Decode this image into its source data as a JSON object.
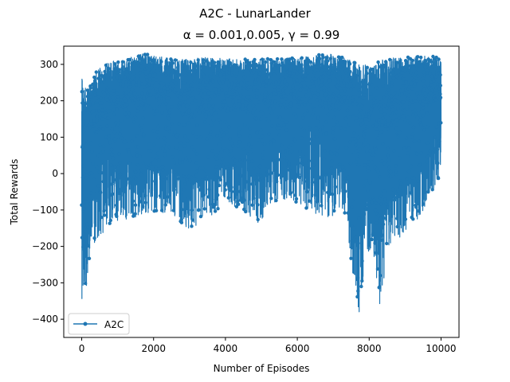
{
  "chart_data": {
    "type": "line",
    "suptitle": "A2C - LunarLander",
    "title": "α = 0.001,0.005, γ = 0.99",
    "xlabel": "Number of Episodes",
    "ylabel": "Total Rewards",
    "xlim": [
      -500,
      10500
    ],
    "ylim": [
      -450,
      350
    ],
    "xticks": [
      0,
      2000,
      4000,
      6000,
      8000,
      10000
    ],
    "yticks": [
      -400,
      -300,
      -200,
      -100,
      0,
      100,
      200,
      300
    ],
    "grid": false,
    "legend_position": "lower-left",
    "color": "#1f77b4",
    "series": [
      {
        "name": "A2C",
        "n_points": 10000,
        "x_range": [
          0,
          10000
        ],
        "envelope": [
          {
            "x": 0,
            "upper": 270,
            "lower": -355
          },
          {
            "x": 50,
            "upper": 240,
            "lower": -350
          },
          {
            "x": 150,
            "upper": 230,
            "lower": -300
          },
          {
            "x": 300,
            "upper": 250,
            "lower": -190
          },
          {
            "x": 400,
            "upper": 280,
            "lower": -220
          },
          {
            "x": 600,
            "upper": 300,
            "lower": -160
          },
          {
            "x": 900,
            "upper": 310,
            "lower": -140
          },
          {
            "x": 1200,
            "upper": 315,
            "lower": -130
          },
          {
            "x": 1750,
            "upper": 330,
            "lower": -110
          },
          {
            "x": 2500,
            "upper": 315,
            "lower": -110
          },
          {
            "x": 3000,
            "upper": 315,
            "lower": -160
          },
          {
            "x": 3500,
            "upper": 320,
            "lower": -130
          },
          {
            "x": 4000,
            "upper": 315,
            "lower": -80
          },
          {
            "x": 4500,
            "upper": 315,
            "lower": -100
          },
          {
            "x": 4900,
            "upper": 320,
            "lower": -140
          },
          {
            "x": 5500,
            "upper": 315,
            "lower": -70
          },
          {
            "x": 6000,
            "upper": 320,
            "lower": -80
          },
          {
            "x": 6500,
            "upper": 325,
            "lower": -110
          },
          {
            "x": 6900,
            "upper": 330,
            "lower": -120
          },
          {
            "x": 7300,
            "upper": 320,
            "lower": -100
          },
          {
            "x": 7500,
            "upper": 310,
            "lower": -240
          },
          {
            "x": 7700,
            "upper": 300,
            "lower": -410
          },
          {
            "x": 7900,
            "upper": 300,
            "lower": -230
          },
          {
            "x": 8100,
            "upper": 290,
            "lower": -200
          },
          {
            "x": 8300,
            "upper": 320,
            "lower": -380
          },
          {
            "x": 8500,
            "upper": 310,
            "lower": -230
          },
          {
            "x": 8700,
            "upper": 320,
            "lower": -200
          },
          {
            "x": 9000,
            "upper": 320,
            "lower": -160
          },
          {
            "x": 9300,
            "upper": 320,
            "lower": -140
          },
          {
            "x": 9600,
            "upper": 325,
            "lower": -80
          },
          {
            "x": 10000,
            "upper": 320,
            "lower": 0
          }
        ]
      }
    ]
  }
}
